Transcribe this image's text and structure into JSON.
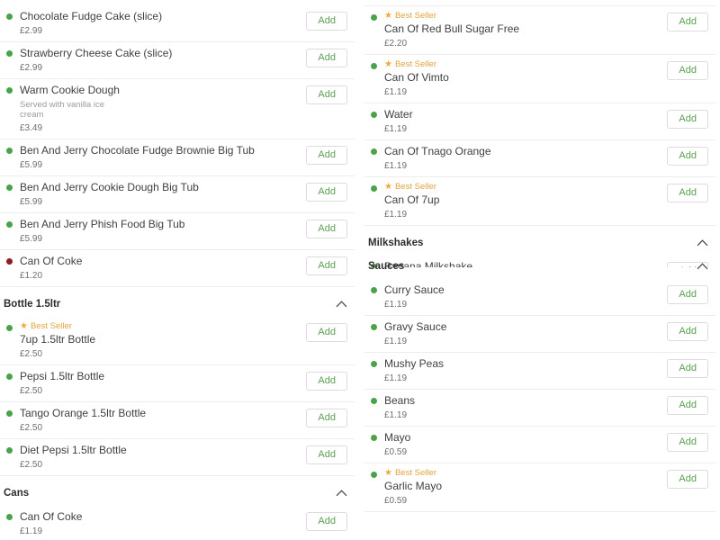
{
  "ui": {
    "add_label": "Add",
    "best_seller_label": "Best Seller",
    "best_seller_star": "★",
    "colors": {
      "dot_green": "#4aa34a",
      "dot_red": "#8e1d1d",
      "best_seller_amber": "#e2a33d",
      "add_button_green": "#5aa050",
      "divider": "#ececec"
    }
  },
  "left_column": {
    "sections": [
      {
        "header": null,
        "items": [
          {
            "name": "Chocolate Fudge Cake (slice)",
            "price": "£2.99",
            "dot": "green"
          },
          {
            "name": "Strawberry Cheese Cake (slice)",
            "price": "£2.99",
            "dot": "green"
          },
          {
            "name": "Warm Cookie Dough",
            "description": "Served with vanilla ice cream",
            "price": "£3.49",
            "dot": "green"
          },
          {
            "name": "Ben And Jerry Chocolate Fudge Brownie Big Tub",
            "price": "£5.99",
            "dot": "green"
          },
          {
            "name": "Ben And Jerry Cookie Dough Big Tub",
            "price": "£5.99",
            "dot": "green"
          },
          {
            "name": "Ben And Jerry Phish Food Big Tub",
            "price": "£5.99",
            "dot": "green"
          },
          {
            "name": "Can Of Coke",
            "price": "£1.20",
            "dot": "red"
          }
        ]
      },
      {
        "header": "Bottle 1.5ltr",
        "items": [
          {
            "name": "7up 1.5ltr Bottle",
            "price": "£2.50",
            "dot": "green",
            "best_seller": true
          },
          {
            "name": "Pepsi 1.5ltr Bottle",
            "price": "£2.50",
            "dot": "green"
          },
          {
            "name": "Tango Orange 1.5ltr Bottle",
            "price": "£2.50",
            "dot": "green"
          },
          {
            "name": "Diet Pepsi 1.5ltr Bottle",
            "price": "£2.50",
            "dot": "green"
          }
        ]
      },
      {
        "header": "Cans",
        "items": [
          {
            "name": "Can Of Coke",
            "price": "£1.19",
            "dot": "green"
          }
        ]
      }
    ]
  },
  "right_column": {
    "sections": [
      {
        "header": null,
        "items": [
          {
            "name": "Can Of Red Bull Sugar Free",
            "price": "£2.20",
            "dot": "green",
            "best_seller": true
          },
          {
            "name": "Can Of Vimto",
            "price": "£1.19",
            "dot": "green",
            "best_seller": true
          },
          {
            "name": "Water",
            "price": "£1.19",
            "dot": "green"
          },
          {
            "name": "Can Of Tnago Orange",
            "price": "£1.19",
            "dot": "green"
          },
          {
            "name": "Can Of 7up",
            "price": "£1.19",
            "dot": "green",
            "best_seller": true
          }
        ]
      },
      {
        "header": "Milkshakes",
        "items": [
          {
            "name": "Banana Milkshake",
            "dot": "green",
            "clipped": true
          }
        ]
      },
      {
        "header": "Sauces",
        "overlap": true,
        "items": [
          {
            "name": "Curry Sauce",
            "price": "£1.19",
            "dot": "green"
          },
          {
            "name": "Gravy Sauce",
            "price": "£1.19",
            "dot": "green"
          },
          {
            "name": "Mushy Peas",
            "price": "£1.19",
            "dot": "green"
          },
          {
            "name": "Beans",
            "price": "£1.19",
            "dot": "green"
          },
          {
            "name": "Mayo",
            "price": "£0.59",
            "dot": "green"
          },
          {
            "name": "Garlic Mayo",
            "price": "£0.59",
            "dot": "green",
            "best_seller": true
          }
        ]
      }
    ]
  }
}
